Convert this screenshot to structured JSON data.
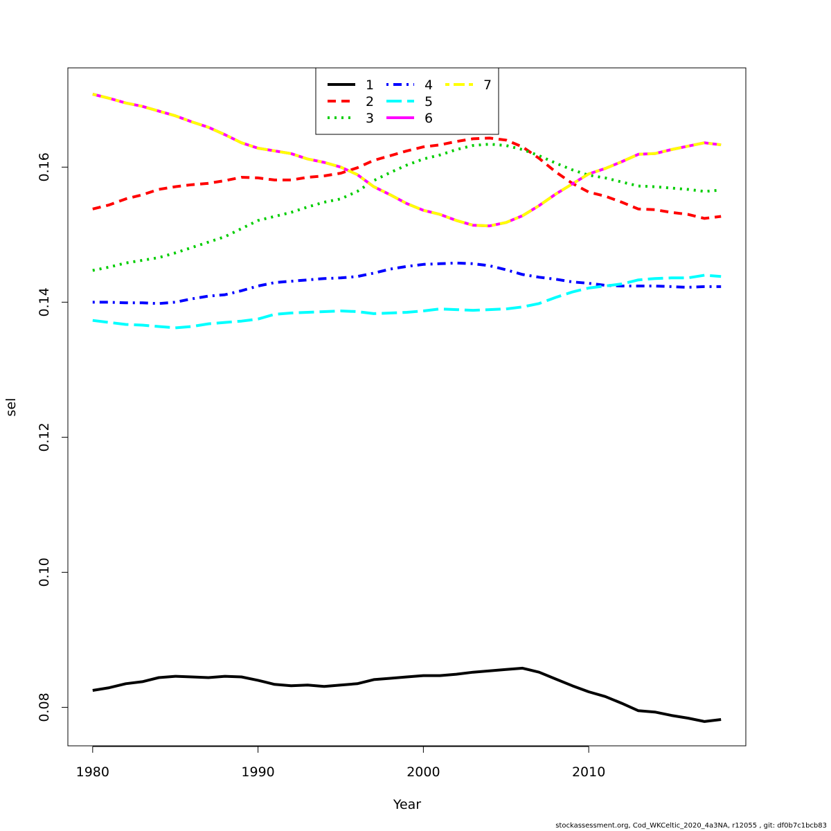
{
  "footer": "stockassessment.org, Cod_WKCeltic_2020_4a3NA, r12055 , git: df0b7c1bcb83",
  "chart_data": {
    "type": "line",
    "title": "",
    "xlabel": "Year",
    "ylabel": "sel",
    "xlim": [
      1978.5,
      2019.5
    ],
    "ylim": [
      0.0743,
      0.1747
    ],
    "xticks": [
      1980,
      1990,
      2000,
      2010
    ],
    "yticks": [
      0.08,
      0.1,
      0.12,
      0.14,
      0.16
    ],
    "ytick_labels": [
      "0.08",
      "0.10",
      "0.12",
      "0.14",
      "0.16"
    ],
    "grid": false,
    "legend_position": "top-center",
    "x": [
      1980,
      1981,
      1982,
      1983,
      1984,
      1985,
      1986,
      1987,
      1988,
      1989,
      1990,
      1991,
      1992,
      1993,
      1994,
      1995,
      1996,
      1997,
      1998,
      1999,
      2000,
      2001,
      2002,
      2003,
      2004,
      2005,
      2006,
      2007,
      2008,
      2009,
      2010,
      2011,
      2012,
      2013,
      2014,
      2015,
      2016,
      2017,
      2018
    ],
    "series": [
      {
        "name": "1",
        "color": "#000000",
        "dash": "solid",
        "values": [
          0.0825,
          0.0829,
          0.0835,
          0.0838,
          0.0844,
          0.0846,
          0.0845,
          0.0844,
          0.0846,
          0.0845,
          0.084,
          0.0834,
          0.0832,
          0.0833,
          0.0831,
          0.0833,
          0.0835,
          0.0841,
          0.0843,
          0.0845,
          0.0847,
          0.0847,
          0.0849,
          0.0852,
          0.0854,
          0.0856,
          0.0858,
          0.0852,
          0.0842,
          0.0832,
          0.0823,
          0.0816,
          0.0806,
          0.0795,
          0.0793,
          0.0788,
          0.0784,
          0.0779,
          0.0782
        ]
      },
      {
        "name": "2",
        "color": "#ff0000",
        "dash": "dashed",
        "values": [
          0.1538,
          0.1544,
          0.1553,
          0.1559,
          0.1567,
          0.1571,
          0.1574,
          0.1576,
          0.158,
          0.1585,
          0.1584,
          0.1581,
          0.1581,
          0.1585,
          0.1587,
          0.1591,
          0.1599,
          0.161,
          0.1617,
          0.1624,
          0.163,
          0.1633,
          0.1638,
          0.1642,
          0.1643,
          0.164,
          0.163,
          0.1613,
          0.1593,
          0.1576,
          0.1563,
          0.1557,
          0.1548,
          0.1538,
          0.1537,
          0.1533,
          0.153,
          0.1524,
          0.1527
        ]
      },
      {
        "name": "3",
        "color": "#00cd00",
        "dash": "dotted",
        "values": [
          0.1447,
          0.1452,
          0.1458,
          0.1462,
          0.1466,
          0.1473,
          0.1481,
          0.1489,
          0.1497,
          0.1509,
          0.1521,
          0.1527,
          0.1533,
          0.1541,
          0.1548,
          0.1553,
          0.1564,
          0.158,
          0.1592,
          0.1603,
          0.1612,
          0.1618,
          0.1626,
          0.1632,
          0.1634,
          0.1632,
          0.1626,
          0.1617,
          0.1606,
          0.1596,
          0.1588,
          0.1584,
          0.1578,
          0.1572,
          0.1571,
          0.1569,
          0.1567,
          0.1564,
          0.1566
        ]
      },
      {
        "name": "4",
        "color": "#0000ff",
        "dash": "dotdash",
        "values": [
          0.14,
          0.14,
          0.1399,
          0.1399,
          0.1398,
          0.14,
          0.1405,
          0.1409,
          0.1411,
          0.1417,
          0.1424,
          0.1429,
          0.1431,
          0.1433,
          0.1435,
          0.1436,
          0.1438,
          0.1443,
          0.1449,
          0.1453,
          0.1456,
          0.1457,
          0.1458,
          0.1457,
          0.1454,
          0.1448,
          0.1441,
          0.1437,
          0.1434,
          0.143,
          0.1428,
          0.1425,
          0.1424,
          0.1424,
          0.1424,
          0.1423,
          0.1422,
          0.1423,
          0.1423
        ]
      },
      {
        "name": "5",
        "color": "#00ffff",
        "dash": "longdash",
        "values": [
          0.1373,
          0.137,
          0.1367,
          0.1366,
          0.1364,
          0.1362,
          0.1364,
          0.1368,
          0.137,
          0.1372,
          0.1375,
          0.1382,
          0.1384,
          0.1385,
          0.1386,
          0.1387,
          0.1386,
          0.1383,
          0.1384,
          0.1385,
          0.1387,
          0.139,
          0.1389,
          0.1388,
          0.1389,
          0.139,
          0.1393,
          0.1398,
          0.1407,
          0.1415,
          0.1421,
          0.1424,
          0.1427,
          0.1433,
          0.1435,
          0.1436,
          0.1436,
          0.144,
          0.1438
        ]
      },
      {
        "name": "6",
        "color": "#ff00ff",
        "dash": "solid",
        "values": [
          0.1708,
          0.1702,
          0.1695,
          0.169,
          0.1683,
          0.1676,
          0.1667,
          0.1659,
          0.1648,
          0.1636,
          0.1628,
          0.1624,
          0.162,
          0.1612,
          0.1607,
          0.16,
          0.1589,
          0.1571,
          0.1559,
          0.1546,
          0.1536,
          0.153,
          0.1521,
          0.1514,
          0.1513,
          0.1518,
          0.1528,
          0.1543,
          0.156,
          0.1575,
          0.159,
          0.1598,
          0.1608,
          0.1619,
          0.162,
          0.1626,
          0.1631,
          0.1636,
          0.1633
        ]
      },
      {
        "name": "7",
        "color": "#ffff00",
        "dash": "twodash",
        "values": [
          0.1708,
          0.1702,
          0.1695,
          0.169,
          0.1683,
          0.1676,
          0.1667,
          0.1659,
          0.1648,
          0.1636,
          0.1628,
          0.1624,
          0.162,
          0.1612,
          0.1607,
          0.16,
          0.1589,
          0.1571,
          0.1559,
          0.1546,
          0.1536,
          0.153,
          0.1521,
          0.1514,
          0.1513,
          0.1518,
          0.1528,
          0.1543,
          0.156,
          0.1575,
          0.159,
          0.1598,
          0.1608,
          0.1619,
          0.162,
          0.1626,
          0.1631,
          0.1636,
          0.1633
        ]
      }
    ]
  }
}
